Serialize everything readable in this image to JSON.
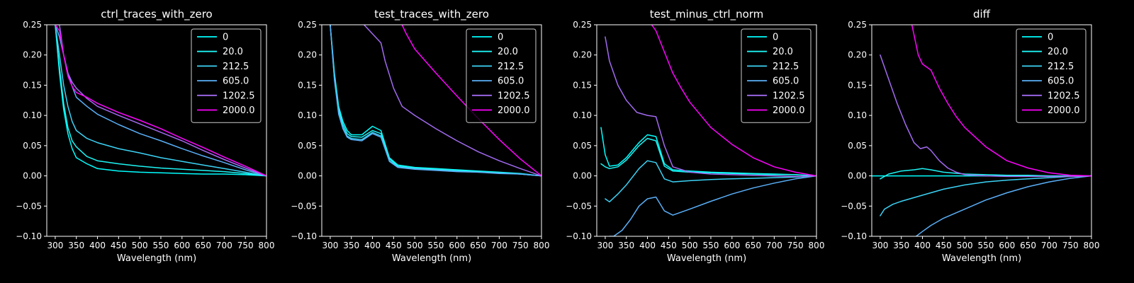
{
  "chart_data": [
    {
      "type": "line",
      "title": "ctrl_traces_with_zero",
      "xlabel": "Wavelength (nm)",
      "ylabel": "",
      "xlim": [
        280,
        800
      ],
      "ylim": [
        -0.1,
        0.25
      ],
      "xticks": [
        300,
        350,
        400,
        450,
        500,
        550,
        600,
        650,
        700,
        750,
        800
      ],
      "yticks": [
        -0.1,
        -0.05,
        0.0,
        0.05,
        0.1,
        0.15,
        0.2,
        0.25
      ],
      "grid": false,
      "legend_position": "top-right",
      "series": [
        {
          "name": "0",
          "color": "#00ffff",
          "x": [
            300,
            310,
            320,
            330,
            340,
            350,
            375,
            400,
            450,
            500,
            550,
            600,
            650,
            700,
            750,
            800
          ],
          "y": [
            0.25,
            0.17,
            0.11,
            0.07,
            0.045,
            0.03,
            0.02,
            0.012,
            0.008,
            0.006,
            0.005,
            0.004,
            0.003,
            0.003,
            0.002,
            0.0
          ]
        },
        {
          "name": "20.0",
          "color": "#1ef4f4",
          "x": [
            300,
            310,
            320,
            330,
            340,
            350,
            375,
            400,
            450,
            500,
            550,
            600,
            650,
            700,
            750,
            800
          ],
          "y": [
            0.25,
            0.18,
            0.12,
            0.08,
            0.058,
            0.048,
            0.032,
            0.025,
            0.02,
            0.016,
            0.013,
            0.011,
            0.009,
            0.007,
            0.004,
            0.0
          ]
        },
        {
          "name": "212.5",
          "color": "#3cd3f6",
          "x": [
            300,
            310,
            320,
            330,
            340,
            350,
            375,
            400,
            450,
            500,
            550,
            600,
            650,
            700,
            750,
            800
          ],
          "y": [
            0.25,
            0.2,
            0.15,
            0.115,
            0.09,
            0.075,
            0.062,
            0.055,
            0.045,
            0.038,
            0.03,
            0.024,
            0.018,
            0.012,
            0.006,
            0.0
          ]
        },
        {
          "name": "605.0",
          "color": "#5aaff8",
          "x": [
            300,
            310,
            320,
            330,
            340,
            350,
            375,
            400,
            450,
            500,
            550,
            600,
            650,
            700,
            750,
            800
          ],
          "y": [
            0.25,
            0.23,
            0.2,
            0.17,
            0.148,
            0.13,
            0.115,
            0.102,
            0.085,
            0.07,
            0.058,
            0.045,
            0.033,
            0.022,
            0.01,
            0.0
          ]
        },
        {
          "name": "1202.5",
          "color": "#a26af0",
          "x": [
            300,
            310,
            320,
            330,
            340,
            350,
            375,
            400,
            450,
            500,
            550,
            600,
            650,
            700,
            750,
            800
          ],
          "y": [
            0.25,
            0.25,
            0.2,
            0.17,
            0.155,
            0.145,
            0.128,
            0.115,
            0.1,
            0.086,
            0.072,
            0.058,
            0.042,
            0.027,
            0.013,
            0.0
          ]
        },
        {
          "name": "2000.0",
          "color": "#ff00ff",
          "x": [
            300,
            310,
            320,
            330,
            340,
            350,
            375,
            400,
            450,
            500,
            550,
            600,
            650,
            700,
            750,
            800
          ],
          "y": [
            0.25,
            0.24,
            0.2,
            0.165,
            0.148,
            0.138,
            0.13,
            0.12,
            0.105,
            0.092,
            0.078,
            0.062,
            0.047,
            0.031,
            0.016,
            0.0
          ]
        }
      ]
    },
    {
      "type": "line",
      "title": "test_traces_with_zero",
      "xlabel": "Wavelength (nm)",
      "ylabel": "",
      "xlim": [
        280,
        800
      ],
      "ylim": [
        -0.1,
        0.25
      ],
      "xticks": [
        300,
        350,
        400,
        450,
        500,
        550,
        600,
        650,
        700,
        750,
        800
      ],
      "yticks": [
        -0.1,
        -0.05,
        0.0,
        0.05,
        0.1,
        0.15,
        0.2,
        0.25
      ],
      "grid": false,
      "legend_position": "top-right",
      "series": [
        {
          "name": "0",
          "color": "#00ffff",
          "x": [
            300,
            310,
            320,
            330,
            340,
            350,
            375,
            400,
            420,
            440,
            460,
            500,
            550,
            600,
            650,
            700,
            750,
            800
          ],
          "y": [
            0.25,
            0.17,
            0.115,
            0.09,
            0.075,
            0.068,
            0.068,
            0.082,
            0.075,
            0.03,
            0.018,
            0.014,
            0.012,
            0.01,
            0.008,
            0.006,
            0.004,
            0.0
          ]
        },
        {
          "name": "20.0",
          "color": "#1ef4f4",
          "x": [
            300,
            310,
            320,
            330,
            340,
            350,
            375,
            400,
            420,
            440,
            460,
            500,
            550,
            600,
            650,
            700,
            750,
            800
          ],
          "y": [
            0.25,
            0.165,
            0.11,
            0.085,
            0.07,
            0.065,
            0.064,
            0.075,
            0.07,
            0.028,
            0.016,
            0.013,
            0.011,
            0.009,
            0.007,
            0.005,
            0.003,
            0.0
          ]
        },
        {
          "name": "212.5",
          "color": "#3cd3f6",
          "x": [
            300,
            310,
            320,
            330,
            340,
            350,
            375,
            400,
            420,
            440,
            460,
            500,
            550,
            600,
            650,
            700,
            750,
            800
          ],
          "y": [
            0.25,
            0.16,
            0.105,
            0.08,
            0.066,
            0.062,
            0.06,
            0.072,
            0.066,
            0.025,
            0.015,
            0.012,
            0.01,
            0.008,
            0.006,
            0.005,
            0.003,
            0.0
          ]
        },
        {
          "name": "605.0",
          "color": "#5aaff8",
          "x": [
            300,
            310,
            320,
            330,
            340,
            350,
            375,
            400,
            420,
            440,
            460,
            500,
            550,
            600,
            650,
            700,
            750,
            800
          ],
          "y": [
            0.25,
            0.158,
            0.102,
            0.078,
            0.064,
            0.06,
            0.058,
            0.07,
            0.064,
            0.024,
            0.014,
            0.011,
            0.009,
            0.007,
            0.006,
            0.004,
            0.003,
            0.0
          ]
        },
        {
          "name": "1202.5",
          "color": "#a26af0",
          "x": [
            380,
            400,
            420,
            430,
            450,
            470,
            500,
            550,
            600,
            650,
            700,
            750,
            800
          ],
          "y": [
            0.25,
            0.235,
            0.22,
            0.19,
            0.145,
            0.115,
            0.1,
            0.078,
            0.058,
            0.04,
            0.025,
            0.012,
            0.0
          ]
        },
        {
          "name": "2000.0",
          "color": "#ff00ff",
          "x": [
            470,
            480,
            500,
            550,
            600,
            650,
            700,
            750,
            800
          ],
          "y": [
            0.25,
            0.235,
            0.21,
            0.17,
            0.132,
            0.095,
            0.06,
            0.028,
            0.0
          ]
        }
      ]
    },
    {
      "type": "line",
      "title": "test_minus_ctrl_norm",
      "xlabel": "Wavelength (nm)",
      "ylabel": "",
      "xlim": [
        280,
        800
      ],
      "ylim": [
        -0.1,
        0.25
      ],
      "xticks": [
        300,
        350,
        400,
        450,
        500,
        550,
        600,
        650,
        700,
        750,
        800
      ],
      "yticks": [
        -0.1,
        -0.05,
        0.0,
        0.05,
        0.1,
        0.15,
        0.2,
        0.25
      ],
      "grid": false,
      "legend_position": "top-right",
      "series": [
        {
          "name": "0",
          "color": "#00ffff",
          "x": [
            290,
            300,
            310,
            330,
            350,
            380,
            400,
            420,
            440,
            460,
            500,
            550,
            600,
            650,
            700,
            750,
            800
          ],
          "y": [
            0.08,
            0.035,
            0.016,
            0.018,
            0.03,
            0.055,
            0.068,
            0.065,
            0.02,
            0.01,
            0.008,
            0.006,
            0.005,
            0.004,
            0.003,
            0.002,
            0.0
          ]
        },
        {
          "name": "20.0",
          "color": "#1ef4f4",
          "x": [
            290,
            300,
            310,
            330,
            350,
            380,
            400,
            420,
            440,
            460,
            500,
            550,
            600,
            650,
            700,
            750,
            800
          ],
          "y": [
            0.02,
            0.015,
            0.012,
            0.015,
            0.026,
            0.05,
            0.062,
            0.058,
            0.016,
            0.008,
            0.006,
            0.005,
            0.004,
            0.003,
            0.002,
            0.002,
            0.0
          ]
        },
        {
          "name": "212.5",
          "color": "#3cd3f6",
          "x": [
            300,
            310,
            330,
            350,
            380,
            400,
            420,
            440,
            460,
            500,
            550,
            600,
            650,
            700,
            750,
            800
          ],
          "y": [
            -0.038,
            -0.043,
            -0.03,
            -0.015,
            0.012,
            0.025,
            0.022,
            -0.005,
            -0.01,
            -0.008,
            -0.006,
            -0.005,
            -0.004,
            -0.003,
            -0.002,
            0.0
          ]
        },
        {
          "name": "605.0",
          "color": "#5aaff8",
          "x": [
            310,
            320,
            340,
            360,
            380,
            400,
            420,
            440,
            460,
            500,
            550,
            600,
            650,
            700,
            750,
            800
          ],
          "y": [
            -0.1,
            -0.1,
            -0.09,
            -0.072,
            -0.05,
            -0.038,
            -0.035,
            -0.058,
            -0.065,
            -0.055,
            -0.042,
            -0.03,
            -0.02,
            -0.012,
            -0.005,
            0.0
          ]
        },
        {
          "name": "1202.5",
          "color": "#a26af0",
          "x": [
            300,
            310,
            330,
            350,
            375,
            400,
            420,
            440,
            460,
            500,
            550,
            600,
            650,
            700,
            750,
            800
          ],
          "y": [
            0.23,
            0.19,
            0.15,
            0.125,
            0.105,
            0.1,
            0.098,
            0.05,
            0.015,
            0.006,
            0.003,
            0.002,
            0.001,
            0.0,
            -0.001,
            0.0
          ]
        },
        {
          "name": "2000.0",
          "color": "#ff00ff",
          "x": [
            410,
            420,
            440,
            460,
            480,
            500,
            550,
            600,
            650,
            700,
            750,
            800
          ],
          "y": [
            0.25,
            0.24,
            0.205,
            0.17,
            0.145,
            0.122,
            0.08,
            0.052,
            0.03,
            0.015,
            0.006,
            0.0
          ]
        }
      ]
    },
    {
      "type": "line",
      "title": "diff",
      "xlabel": "Wavelength (nm)",
      "ylabel": "",
      "xlim": [
        280,
        800
      ],
      "ylim": [
        -0.1,
        0.25
      ],
      "xticks": [
        300,
        350,
        400,
        450,
        500,
        550,
        600,
        650,
        700,
        750,
        800
      ],
      "yticks": [
        -0.1,
        -0.05,
        0.0,
        0.05,
        0.1,
        0.15,
        0.2,
        0.25
      ],
      "grid": false,
      "legend_position": "top-right",
      "series": [
        {
          "name": "0",
          "color": "#00ffff",
          "x": [
            280,
            800
          ],
          "y": [
            0.0,
            0.0
          ]
        },
        {
          "name": "20.0",
          "color": "#1ef4f4",
          "x": [
            300,
            320,
            350,
            380,
            400,
            420,
            450,
            500,
            550,
            600,
            650,
            700,
            750,
            800
          ],
          "y": [
            -0.005,
            0.003,
            0.008,
            0.01,
            0.012,
            0.01,
            0.006,
            0.003,
            0.002,
            0.001,
            0.001,
            0.0,
            0.0,
            0.0
          ]
        },
        {
          "name": "212.5",
          "color": "#3cd3f6",
          "x": [
            300,
            310,
            330,
            350,
            400,
            450,
            500,
            550,
            600,
            650,
            700,
            750,
            800
          ],
          "y": [
            -0.066,
            -0.055,
            -0.047,
            -0.042,
            -0.032,
            -0.022,
            -0.015,
            -0.01,
            -0.007,
            -0.005,
            -0.003,
            -0.001,
            0.0
          ]
        },
        {
          "name": "605.0",
          "color": "#5aaff8",
          "x": [
            385,
            400,
            420,
            450,
            500,
            550,
            600,
            650,
            700,
            750,
            800
          ],
          "y": [
            -0.1,
            -0.092,
            -0.082,
            -0.07,
            -0.055,
            -0.04,
            -0.028,
            -0.018,
            -0.01,
            -0.004,
            0.0
          ]
        },
        {
          "name": "1202.5",
          "color": "#a26af0",
          "x": [
            300,
            320,
            340,
            360,
            380,
            395,
            410,
            420,
            440,
            460,
            480,
            500,
            550,
            600,
            650,
            700,
            750,
            800
          ],
          "y": [
            0.2,
            0.16,
            0.12,
            0.085,
            0.055,
            0.045,
            0.048,
            0.042,
            0.025,
            0.013,
            0.006,
            0.002,
            0.0,
            -0.001,
            -0.001,
            -0.001,
            -0.001,
            0.0
          ]
        },
        {
          "name": "2000.0",
          "color": "#ff00ff",
          "x": [
            375,
            390,
            400,
            420,
            440,
            460,
            480,
            500,
            550,
            600,
            650,
            700,
            750,
            800
          ],
          "y": [
            0.25,
            0.2,
            0.185,
            0.175,
            0.145,
            0.12,
            0.098,
            0.08,
            0.048,
            0.025,
            0.013,
            0.005,
            0.001,
            0.0
          ]
        }
      ]
    }
  ]
}
